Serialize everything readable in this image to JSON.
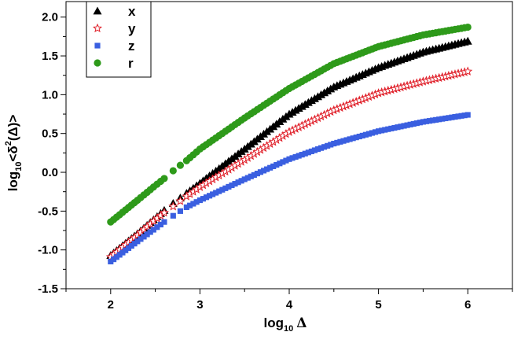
{
  "chart_data": {
    "type": "scatter",
    "title": "",
    "xlabel": {
      "prefix": "log",
      "sub": "10",
      "symbol": "Δ"
    },
    "ylabel": {
      "prefix": "log",
      "sub": "10",
      "body": "<δ",
      "sup": "2",
      "tail": "(Δ)>"
    },
    "xlim": [
      1.5,
      6.5
    ],
    "ylim": [
      -1.5,
      2.2
    ],
    "xticks": [
      2,
      3,
      4,
      5,
      6
    ],
    "xtick_labels": [
      "2",
      "3",
      "4",
      "5",
      "6"
    ],
    "yticks": [
      -1.5,
      -1.0,
      -0.5,
      0.0,
      0.5,
      1.0,
      1.5,
      2.0
    ],
    "ytick_labels": [
      "-1.5",
      "-1.0",
      "-0.5",
      "0.0",
      "0.5",
      "1.0",
      "1.5",
      "2.0"
    ],
    "grid": false,
    "legend_position": "top-left",
    "series": [
      {
        "name": "x",
        "marker": "triangle",
        "color": "#000000",
        "x": [
          2.0,
          2.3,
          2.48,
          2.6,
          2.7,
          2.78,
          2.85,
          3.0,
          3.5,
          4.0,
          4.5,
          5.0,
          5.5,
          6.0
        ],
        "y": [
          -1.07,
          -0.79,
          -0.61,
          -0.49,
          -0.4,
          -0.33,
          -0.27,
          -0.14,
          0.3,
          0.75,
          1.1,
          1.35,
          1.55,
          1.69
        ]
      },
      {
        "name": "y",
        "marker": "star",
        "color": "#e0202a",
        "x": [
          2.0,
          2.3,
          2.48,
          2.6,
          2.7,
          2.78,
          2.85,
          3.0,
          3.5,
          4.0,
          4.5,
          5.0,
          5.5,
          6.0
        ],
        "y": [
          -1.09,
          -0.81,
          -0.63,
          -0.52,
          -0.44,
          -0.37,
          -0.31,
          -0.19,
          0.16,
          0.52,
          0.8,
          1.02,
          1.17,
          1.3
        ]
      },
      {
        "name": "z",
        "marker": "square",
        "color": "#3a5fe0",
        "x": [
          2.0,
          2.3,
          2.48,
          2.6,
          2.7,
          2.78,
          2.85,
          3.0,
          3.5,
          4.0,
          4.5,
          5.0,
          5.5,
          6.0
        ],
        "y": [
          -1.15,
          -0.89,
          -0.74,
          -0.64,
          -0.56,
          -0.5,
          -0.45,
          -0.36,
          -0.09,
          0.17,
          0.37,
          0.53,
          0.65,
          0.74
        ]
      },
      {
        "name": "r",
        "marker": "circle",
        "color": "#2e9a1a",
        "x": [
          2.0,
          2.3,
          2.48,
          2.6,
          2.7,
          2.78,
          2.85,
          3.0,
          3.5,
          4.0,
          4.5,
          5.0,
          5.5,
          6.0
        ],
        "y": [
          -0.64,
          -0.36,
          -0.19,
          -0.08,
          0.02,
          0.09,
          0.15,
          0.3,
          0.7,
          1.08,
          1.4,
          1.62,
          1.77,
          1.87
        ]
      }
    ]
  }
}
